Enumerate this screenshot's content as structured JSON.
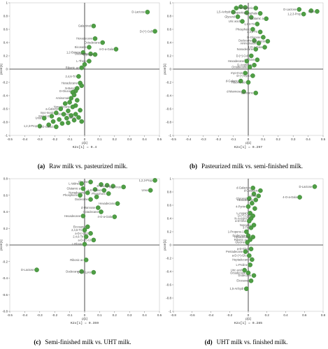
{
  "colors": {
    "point": "#4f9e45",
    "point_edge": "#2f7a2a",
    "axis": "#222222",
    "label": "#555555"
  },
  "panels": [
    {
      "caption_tag": "(a)",
      "caption_text": "Raw milk vs. pasteurized milk."
    },
    {
      "caption_tag": "(b)",
      "caption_text": "Pasteurized milk vs. semi-finished milk."
    },
    {
      "caption_tag": "(c)",
      "caption_text": "Semi-finished milk vs. UHT milk."
    },
    {
      "caption_tag": "(d)",
      "caption_text": "UHT milk vs. finished milk."
    }
  ],
  "chart_data": [
    {
      "type": "scatter",
      "xlabel": "p[1]",
      "ylabel": "pcorr[1]",
      "subtitle": "K2x[1] = 0.4",
      "xlim": [
        -0.5,
        0.5
      ],
      "ylim": [
        -1,
        1
      ],
      "xticks": [
        "-0.5",
        "-0.4",
        "-0.3",
        "-0.2",
        "-0.1",
        "0",
        "0.1",
        "0.2",
        "0.3",
        "0.4",
        "0.5"
      ],
      "yticks": [
        "1",
        "0.8",
        "0.6",
        "0.4",
        "0.2",
        "0",
        "-0.2",
        "-0.4",
        "-0.6",
        "-0.8",
        "-1"
      ],
      "points": [
        {
          "x": 0.42,
          "y": 0.86,
          "label": "D-Lactose"
        },
        {
          "x": 0.06,
          "y": 0.65,
          "label": "Galactinol"
        },
        {
          "x": 0.47,
          "y": 0.57,
          "label": "D-(+)-Cell"
        },
        {
          "x": 0.07,
          "y": 0.46,
          "label": "Hexadecano"
        },
        {
          "x": 0.12,
          "y": 0.4,
          "label": "Octadecane"
        },
        {
          "x": 0.03,
          "y": 0.33,
          "label": "Eicosane"
        },
        {
          "x": 0.21,
          "y": 0.3,
          "label": "4-O-a-Gala"
        },
        {
          "x": -0.01,
          "y": 0.25,
          "label": "1,2-Butane"
        },
        {
          "x": 0.04,
          "y": 0.23,
          "label": "Dodecane"
        },
        {
          "x": 0.07,
          "y": 0.22,
          "label": "Glycine"
        },
        {
          "x": 0.03,
          "y": 0.12,
          "label": "L-Threo"
        },
        {
          "x": 0.0,
          "y": 0.07,
          "label": ""
        },
        {
          "x": -0.02,
          "y": 0.02,
          "label": "Ribonic ac"
        },
        {
          "x": -0.04,
          "y": -0.11,
          "label": "2,4,6-Tri"
        },
        {
          "x": -0.03,
          "y": -0.21,
          "label": "Hexadecane"
        },
        {
          "x": -0.02,
          "y": -0.25,
          "label": ""
        },
        {
          "x": -0.05,
          "y": -0.29,
          "label": "N-Butyl"
        },
        {
          "x": -0.06,
          "y": -0.33,
          "label": "D-Glucose"
        },
        {
          "x": -0.08,
          "y": -0.35,
          "label": ""
        },
        {
          "x": -0.07,
          "y": -0.39,
          "label": ""
        },
        {
          "x": -0.09,
          "y": -0.44,
          "label": "Aminomal"
        },
        {
          "x": -0.05,
          "y": -0.47,
          "label": ""
        },
        {
          "x": -0.1,
          "y": -0.5,
          "label": ""
        },
        {
          "x": -0.13,
          "y": -0.52,
          "label": ""
        },
        {
          "x": -0.06,
          "y": -0.55,
          "label": ""
        },
        {
          "x": -0.08,
          "y": -0.57,
          "label": "Nonadecane"
        },
        {
          "x": -0.16,
          "y": -0.6,
          "label": "a-Galacto"
        },
        {
          "x": -0.03,
          "y": -0.62,
          "label": ""
        },
        {
          "x": -0.11,
          "y": -0.63,
          "label": ""
        },
        {
          "x": -0.19,
          "y": -0.66,
          "label": "myo-Inosit"
        },
        {
          "x": -0.06,
          "y": -0.68,
          "label": "Octadecane"
        },
        {
          "x": -0.14,
          "y": -0.68,
          "label": ""
        },
        {
          "x": -0.09,
          "y": -0.7,
          "label": ""
        },
        {
          "x": -0.22,
          "y": -0.71,
          "label": "Stanol-2"
        },
        {
          "x": -0.04,
          "y": -0.73,
          "label": "L-Valine"
        },
        {
          "x": -0.27,
          "y": -0.74,
          "label": "Urea"
        },
        {
          "x": -0.12,
          "y": -0.74,
          "label": ""
        },
        {
          "x": -0.17,
          "y": -0.76,
          "label": ""
        },
        {
          "x": -0.07,
          "y": -0.77,
          "label": ""
        },
        {
          "x": -0.21,
          "y": -0.79,
          "label": ""
        },
        {
          "x": -0.02,
          "y": -0.79,
          "label": ""
        },
        {
          "x": -0.11,
          "y": -0.81,
          "label": ""
        },
        {
          "x": -0.15,
          "y": -0.82,
          "label": ""
        },
        {
          "x": -0.24,
          "y": -0.84,
          "label": ""
        },
        {
          "x": -0.3,
          "y": -0.86,
          "label": "1,2,3-Prop"
        },
        {
          "x": -0.19,
          "y": -0.87,
          "label": "a-D-Galact"
        }
      ]
    },
    {
      "type": "scatter",
      "xlabel": "p[1]",
      "ylabel": "pcorr[1]",
      "subtitle": "K2x[1] = 0.297",
      "xlim": [
        -0.5,
        0.5
      ],
      "ylim": [
        -1,
        1
      ],
      "xticks": [
        "-0.5",
        "-0.4",
        "-0.3",
        "-0.2",
        "-0.1",
        "0",
        "0.1",
        "0.2",
        "0.3",
        "0.4",
        "0.5"
      ],
      "yticks": [
        "1",
        "0.8",
        "0.6",
        "0.4",
        "0.2",
        "0",
        "-0.2",
        "-0.4",
        "-0.6",
        "-0.8",
        "-1"
      ],
      "points": [
        {
          "x": -0.08,
          "y": 0.92,
          "label": ""
        },
        {
          "x": -0.05,
          "y": 0.94,
          "label": ""
        },
        {
          "x": -0.02,
          "y": 0.93,
          "label": ""
        },
        {
          "x": 0.05,
          "y": 0.92,
          "label": "Phosphoric"
        },
        {
          "x": 0.34,
          "y": 0.9,
          "label": "D-Lactose"
        },
        {
          "x": 0.42,
          "y": 0.88,
          "label": ""
        },
        {
          "x": 0.46,
          "y": 0.87,
          "label": "Urea"
        },
        {
          "x": -0.1,
          "y": 0.86,
          "label": "1,5-Anhydr"
        },
        {
          "x": -0.01,
          "y": 0.85,
          "label": "L-Aspartic"
        },
        {
          "x": 0.08,
          "y": 0.84,
          "label": "Phosphate"
        },
        {
          "x": 0.37,
          "y": 0.83,
          "label": "1,2,3-Prop"
        },
        {
          "x": -0.07,
          "y": 0.79,
          "label": "Glycerol"
        },
        {
          "x": 0.02,
          "y": 0.78,
          "label": ""
        },
        {
          "x": 0.12,
          "y": 0.76,
          "label": "Glutamic a"
        },
        {
          "x": -0.04,
          "y": 0.72,
          "label": "Uric acid"
        },
        {
          "x": 0.06,
          "y": 0.68,
          "label": "1,2,3-Tri"
        },
        {
          "x": 0.03,
          "y": 0.6,
          "label": "Phosphoric"
        },
        {
          "x": 0.08,
          "y": 0.56,
          "label": "2,4,6-Tri"
        },
        {
          "x": 0.1,
          "y": 0.48,
          "label": "D-Glucose"
        },
        {
          "x": 0.04,
          "y": 0.43,
          "label": "Dodecane"
        },
        {
          "x": 0.13,
          "y": 0.42,
          "label": "d-Galacto"
        },
        {
          "x": 0.07,
          "y": 0.39,
          "label": "Aminomalon"
        },
        {
          "x": 0.11,
          "y": 0.33,
          "label": "4-O-a-Gala"
        },
        {
          "x": 0.05,
          "y": 0.3,
          "label": "Nonadecane"
        },
        {
          "x": 0.02,
          "y": 0.2,
          "label": "D-(+)-Cell"
        },
        {
          "x": 0.06,
          "y": 0.14,
          "label": "L-Rham"
        },
        {
          "x": -0.01,
          "y": 0.12,
          "label": "Hexadecane"
        },
        {
          "x": 0.04,
          "y": 0.06,
          "label": "D-Arabinos"
        },
        {
          "x": 0.01,
          "y": 0.03,
          "label": "Octadecane"
        },
        {
          "x": -0.02,
          "y": -0.06,
          "label": "myo-Inos"
        },
        {
          "x": 0.03,
          "y": -0.1,
          "label": "D-(+)-Lyxo"
        },
        {
          "x": -0.05,
          "y": -0.18,
          "label": "d-Galacto"
        },
        {
          "x": 0.0,
          "y": -0.2,
          "label": "Ribonic aci"
        },
        {
          "x": -0.03,
          "y": -0.34,
          "label": "d-Mannose"
        },
        {
          "x": 0.05,
          "y": -0.36,
          "label": "Eicosane"
        }
      ]
    },
    {
      "type": "scatter",
      "xlabel": "p[1]",
      "ylabel": "pcorr[1]",
      "subtitle": "K2x[1] = 0.359",
      "xlim": [
        -0.5,
        0.5
      ],
      "ylim": [
        -0.8,
        0.8
      ],
      "xticks": [
        "-0.5",
        "-0.4",
        "-0.3",
        "-0.2",
        "-0.1",
        "0",
        "0.1",
        "0.2",
        "0.3",
        "0.4",
        "0.5"
      ],
      "yticks": [
        "0.8",
        "0.6",
        "0.4",
        "0.2",
        "0",
        "-0.2",
        "-0.4",
        "-0.6",
        "-0.8"
      ],
      "points": [
        {
          "x": 0.47,
          "y": 0.78,
          "label": "1,2,3-Prop"
        },
        {
          "x": 0.04,
          "y": 0.76,
          "label": "Glycine"
        },
        {
          "x": -0.02,
          "y": 0.74,
          "label": "L-Valine"
        },
        {
          "x": 0.11,
          "y": 0.73,
          "label": ""
        },
        {
          "x": 0.15,
          "y": 0.72,
          "label": ""
        },
        {
          "x": 0.19,
          "y": 0.71,
          "label": "D-Glucose"
        },
        {
          "x": 0.26,
          "y": 0.7,
          "label": "Myo-Inos"
        },
        {
          "x": -0.01,
          "y": 0.68,
          "label": "Glutamic a"
        },
        {
          "x": 0.07,
          "y": 0.67,
          "label": ""
        },
        {
          "x": 0.13,
          "y": 0.66,
          "label": "a-D-Galact"
        },
        {
          "x": 0.44,
          "y": 0.66,
          "label": "Urea"
        },
        {
          "x": 0.02,
          "y": 0.63,
          "label": "Nonadecane"
        },
        {
          "x": 0.16,
          "y": 0.62,
          "label": "Phosphoric"
        },
        {
          "x": -0.03,
          "y": 0.6,
          "label": "Phosphoric"
        },
        {
          "x": 0.08,
          "y": 0.58,
          "label": ""
        },
        {
          "x": 0.04,
          "y": 0.55,
          "label": "Dodecane"
        },
        {
          "x": 0.22,
          "y": 0.5,
          "label": "Hexadecano"
        },
        {
          "x": 0.09,
          "y": 0.45,
          "label": "d-Mannose"
        },
        {
          "x": 0.11,
          "y": 0.4,
          "label": "Octadecane"
        },
        {
          "x": -0.01,
          "y": 0.35,
          "label": "Hexadecane"
        },
        {
          "x": 0.2,
          "y": 0.34,
          "label": "4-O-a-Gala"
        },
        {
          "x": 0.02,
          "y": 0.22,
          "label": "Eicosane"
        },
        {
          "x": 0.0,
          "y": 0.18,
          "label": "2,4,6-Tri"
        },
        {
          "x": 0.04,
          "y": 0.14,
          "label": "a-D-(+)-Gl"
        },
        {
          "x": 0.01,
          "y": 0.1,
          "label": "2,4,6-Tri"
        },
        {
          "x": 0.06,
          "y": 0.06,
          "label": "a-D-(+)-Gl"
        },
        {
          "x": 0.0,
          "y": 0.01,
          "label": "L-Rham"
        },
        {
          "x": 0.01,
          "y": -0.18,
          "label": "Ribonic ac"
        },
        {
          "x": -0.32,
          "y": -0.3,
          "label": "D-Lactose"
        },
        {
          "x": -0.02,
          "y": -0.32,
          "label": "Dodecane"
        },
        {
          "x": 0.06,
          "y": -0.33,
          "label": "D-(+)-Lyxo"
        }
      ]
    },
    {
      "type": "scatter",
      "xlabel": "p[1]",
      "ylabel": "pcorr[1]",
      "subtitle": "K2x[1] = 0.285",
      "xlim": [
        -0.8,
        0.8
      ],
      "ylim": [
        -1,
        1
      ],
      "xticks": [
        "-0.8",
        "-0.6",
        "-0.4",
        "-0.2",
        "0",
        "0.2",
        "0.4",
        "0.6",
        "0.8"
      ],
      "yticks": [
        "1",
        "0.8",
        "0.6",
        "0.4",
        "0.2",
        "0",
        "-0.2",
        "-0.4",
        "-0.6",
        "-0.8",
        "-1"
      ],
      "points": [
        {
          "x": 0.71,
          "y": 0.88,
          "label": "D-Lactose"
        },
        {
          "x": 0.05,
          "y": 0.86,
          "label": "d-Galactos"
        },
        {
          "x": 0.13,
          "y": 0.82,
          "label": "d-Galactos"
        },
        {
          "x": 0.06,
          "y": 0.77,
          "label": ""
        },
        {
          "x": 0.11,
          "y": 0.74,
          "label": "Urea"
        },
        {
          "x": 0.55,
          "y": 0.72,
          "label": "4-O-a-Gala"
        },
        {
          "x": 0.01,
          "y": 0.7,
          "label": "Glycerol"
        },
        {
          "x": 0.08,
          "y": 0.68,
          "label": "Hexadecano"
        },
        {
          "x": 0.04,
          "y": 0.63,
          "label": ""
        },
        {
          "x": 0.0,
          "y": 0.58,
          "label": "4-Pyrim"
        },
        {
          "x": 0.07,
          "y": 0.55,
          "label": ""
        },
        {
          "x": 0.02,
          "y": 0.48,
          "label": "L-Aspart"
        },
        {
          "x": 0.05,
          "y": 0.44,
          "label": "D-(+)-Cell"
        },
        {
          "x": 0.03,
          "y": 0.4,
          "label": "N-Acetyl-D"
        },
        {
          "x": 0.01,
          "y": 0.36,
          "label": "a-D-Gluc"
        },
        {
          "x": 0.06,
          "y": 0.3,
          "label": "Nonadec"
        },
        {
          "x": 0.03,
          "y": 0.26,
          "label": "3-Tri"
        },
        {
          "x": -0.02,
          "y": 0.2,
          "label": "1-Propene-1"
        },
        {
          "x": 0.0,
          "y": 0.14,
          "label": "Dodecane"
        },
        {
          "x": 0.05,
          "y": 0.12,
          "label": "Hexadecane"
        },
        {
          "x": 0.02,
          "y": 0.08,
          "label": "Ribonic ac"
        },
        {
          "x": -0.01,
          "y": 0.04,
          "label": "Glycine"
        },
        {
          "x": 0.03,
          "y": -0.06,
          "label": "a-D-Gluc"
        },
        {
          "x": -0.03,
          "y": -0.1,
          "label": "Pentadecane"
        },
        {
          "x": 0.01,
          "y": -0.16,
          "label": "a-D-(+)-Glu"
        },
        {
          "x": 0.04,
          "y": -0.22,
          "label": "Heptadecane"
        },
        {
          "x": 0.02,
          "y": -0.3,
          "label": "L-Proline"
        },
        {
          "x": -0.04,
          "y": -0.38,
          "label": "Uric acid"
        },
        {
          "x": 0.0,
          "y": -0.42,
          "label": "Octadecane"
        },
        {
          "x": 0.06,
          "y": -0.46,
          "label": "Dodecane"
        },
        {
          "x": 0.03,
          "y": -0.54,
          "label": "Eicosane"
        },
        {
          "x": -0.02,
          "y": -0.66,
          "label": "1,5-Anhydr"
        }
      ]
    }
  ]
}
